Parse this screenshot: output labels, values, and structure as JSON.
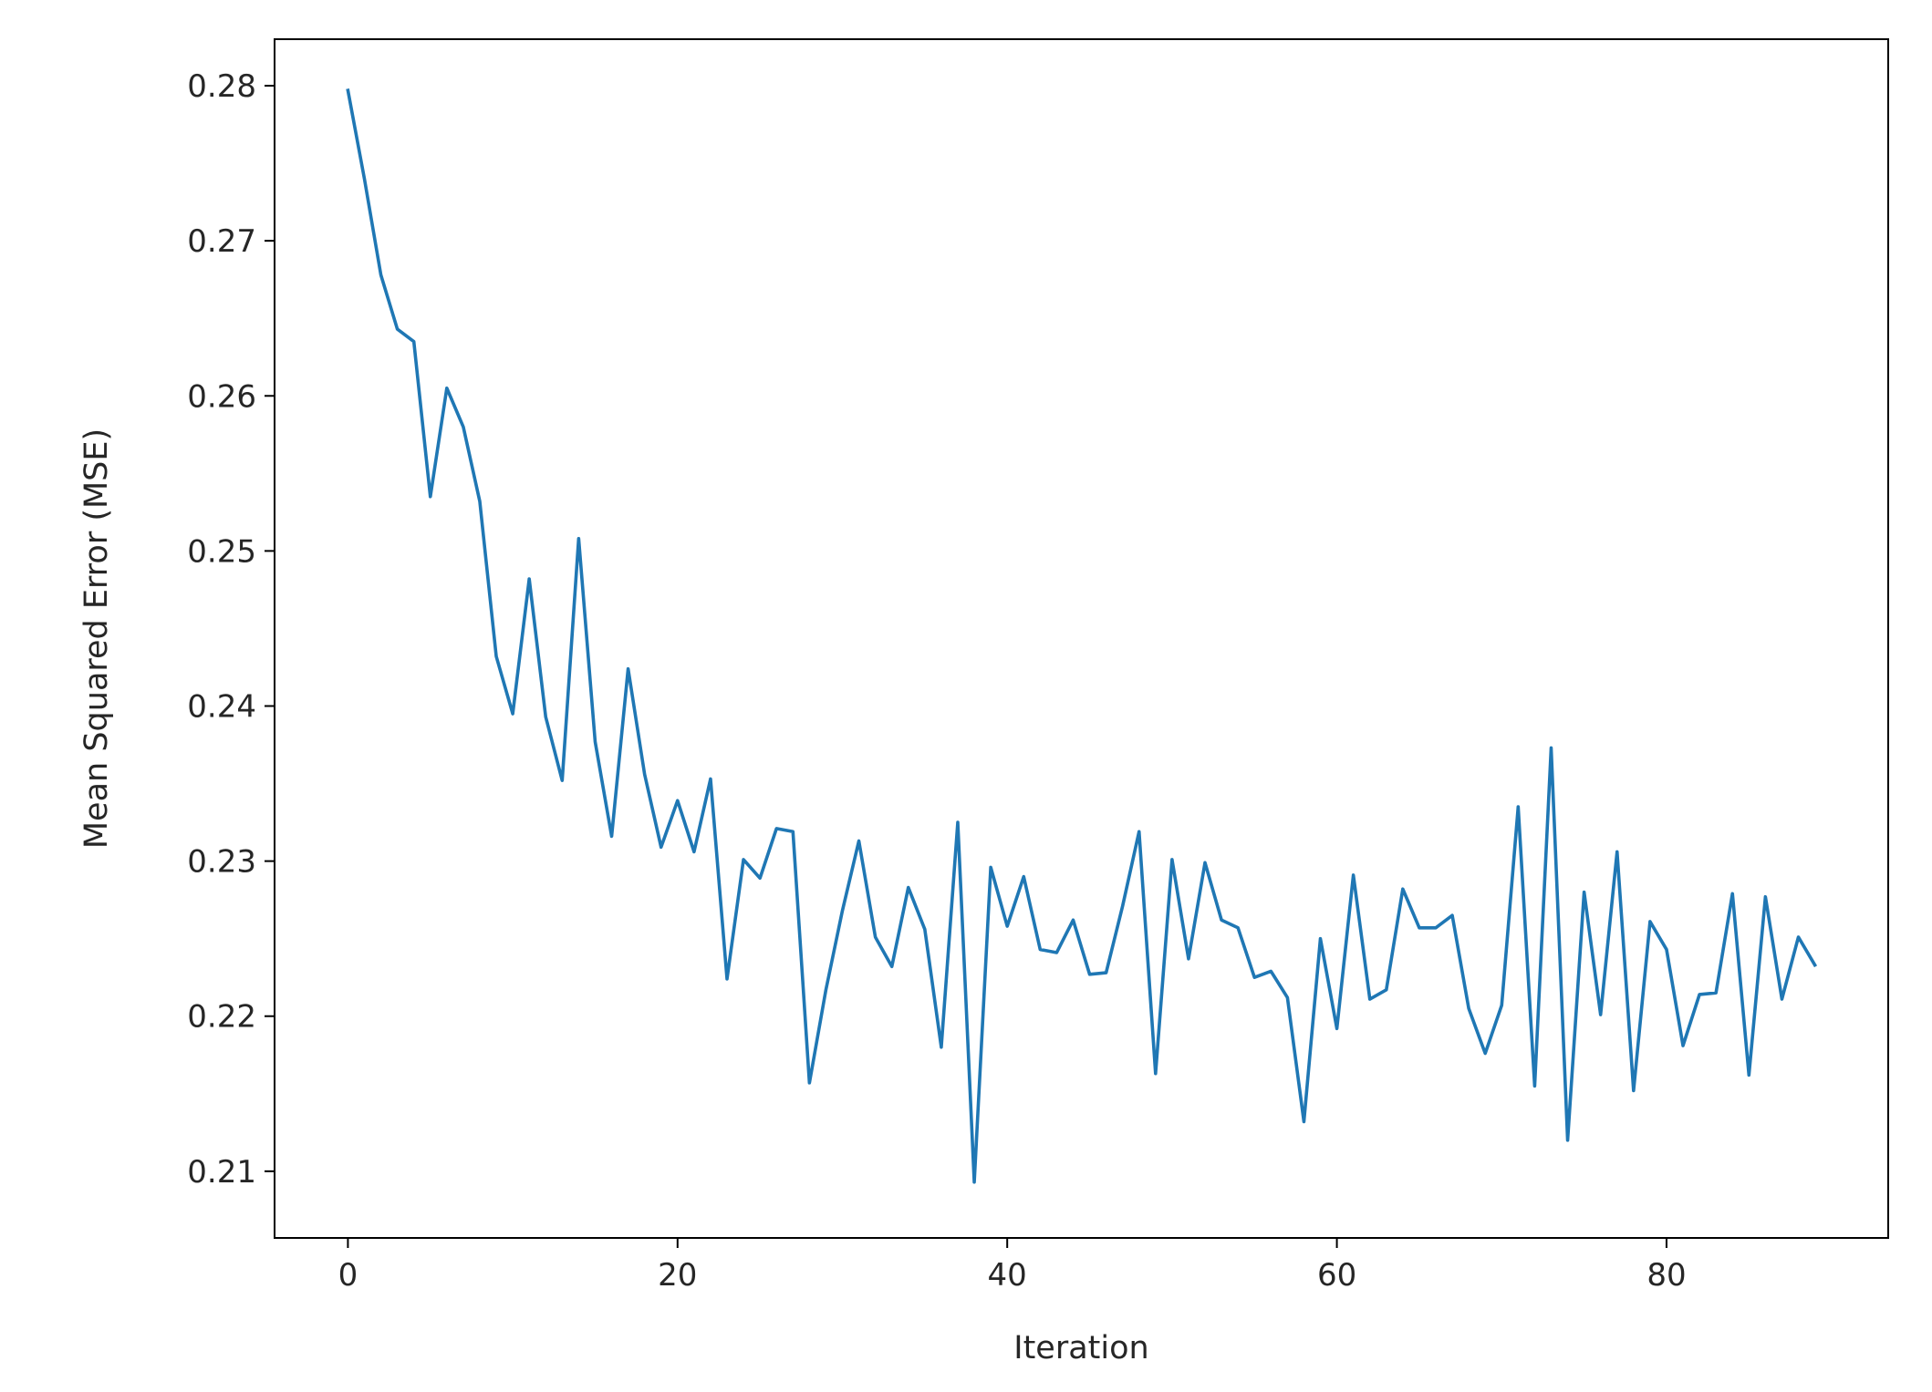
{
  "chart_data": {
    "type": "line",
    "title": "",
    "xlabel": "Iteration",
    "ylabel": "Mean Squared Error (MSE)",
    "xlim": [
      -4.45,
      93.45
    ],
    "ylim": [
      0.2057,
      0.283
    ],
    "xticks": [
      0,
      20,
      40,
      60,
      80
    ],
    "xtick_labels": [
      "0",
      "20",
      "40",
      "60",
      "80"
    ],
    "yticks": [
      0.21,
      0.22,
      0.23,
      0.24,
      0.25,
      0.26,
      0.27,
      0.28
    ],
    "ytick_labels": [
      "0.21",
      "0.22",
      "0.23",
      "0.24",
      "0.25",
      "0.26",
      "0.27",
      "0.28"
    ],
    "grid": false,
    "line_color": "#1f77b4",
    "series": [
      {
        "x": [
          0,
          1,
          2,
          3,
          4,
          5,
          6,
          7,
          8,
          9,
          10,
          11,
          12,
          13,
          14,
          15,
          16,
          17,
          18,
          19,
          20,
          21,
          22,
          23,
          24,
          25,
          26,
          27,
          28,
          29,
          30,
          31,
          32,
          33,
          34,
          35,
          36,
          37,
          38,
          39,
          40,
          41,
          42,
          43,
          44,
          45,
          46,
          47,
          48,
          49,
          50,
          51,
          52,
          53,
          54,
          55,
          56,
          57,
          58,
          59,
          60,
          61,
          62,
          63,
          64,
          65,
          66,
          67,
          68,
          69,
          70,
          71,
          72,
          73,
          74,
          75,
          76,
          77,
          78,
          79,
          80,
          81,
          82,
          83,
          84,
          85,
          86,
          87,
          88,
          89
        ],
        "values": [
          0.2797,
          0.274,
          0.2678,
          0.2643,
          0.2635,
          0.2535,
          0.2605,
          0.258,
          0.2532,
          0.2432,
          0.2395,
          0.2482,
          0.2393,
          0.2352,
          0.2508,
          0.2377,
          0.2316,
          0.2424,
          0.2356,
          0.2309,
          0.2339,
          0.2306,
          0.2353,
          0.2224,
          0.2301,
          0.2289,
          0.2321,
          0.2319,
          0.2157,
          0.2217,
          0.2268,
          0.2313,
          0.2251,
          0.2232,
          0.2283,
          0.2256,
          0.218,
          0.2325,
          0.2093,
          0.2296,
          0.2258,
          0.229,
          0.2243,
          0.2241,
          0.2262,
          0.2227,
          0.2228,
          0.2271,
          0.2319,
          0.2163,
          0.2301,
          0.2237,
          0.2299,
          0.2262,
          0.2257,
          0.2225,
          0.2229,
          0.2212,
          0.2132,
          0.225,
          0.2192,
          0.2291,
          0.2211,
          0.2217,
          0.2282,
          0.2257,
          0.2257,
          0.2265,
          0.2205,
          0.2176,
          0.2207,
          0.2335,
          0.2155,
          0.2373,
          0.212,
          0.228,
          0.2201,
          0.2306,
          0.2152,
          0.2261,
          0.2243,
          0.2181,
          0.2214,
          0.2215,
          0.2279,
          0.2162,
          0.2277,
          0.2211,
          0.2251,
          0.2233
        ]
      }
    ]
  }
}
